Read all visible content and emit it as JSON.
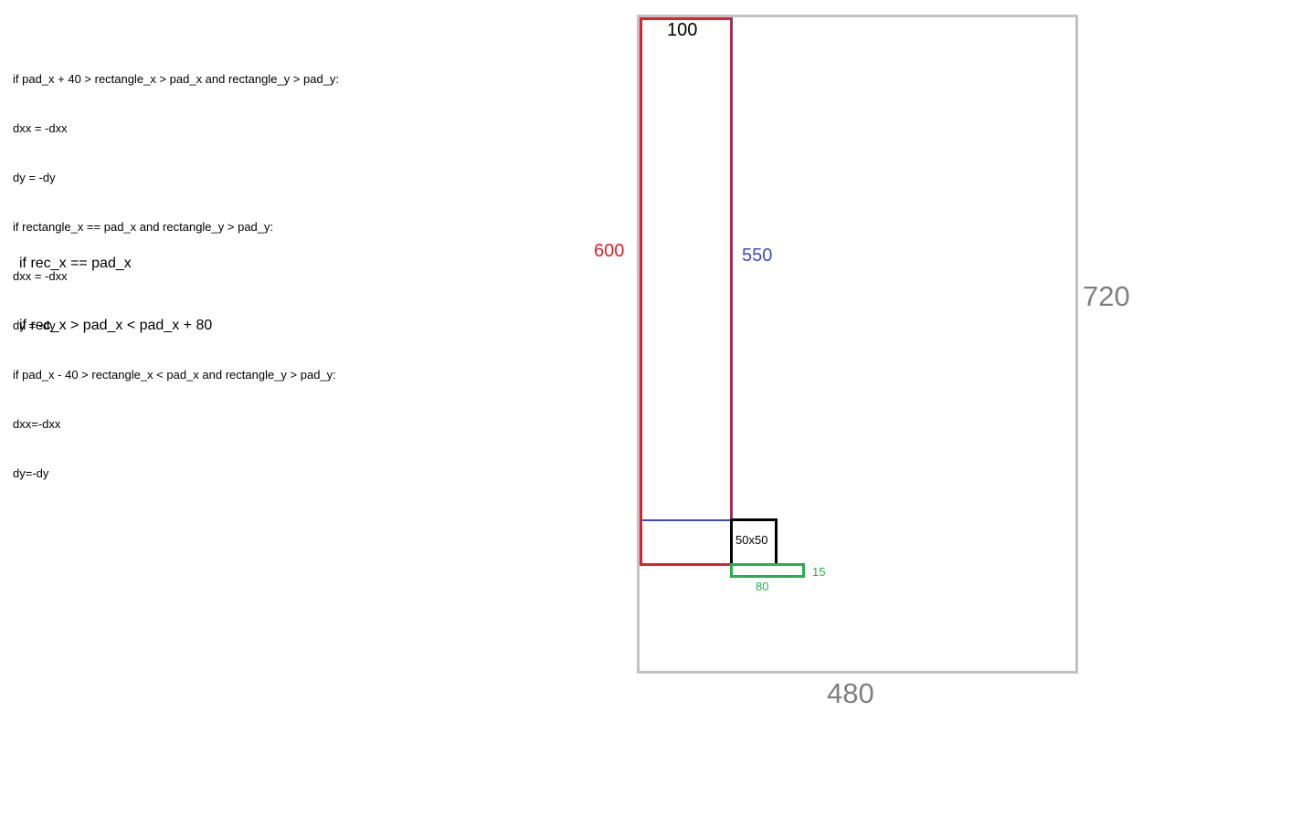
{
  "code_lines": [
    "if pad_x + 40 > rectangle_x > pad_x and rectangle_y > pad_y:",
    "dxx = -dxx",
    "dy = -dy",
    "if rectangle_x == pad_x and rectangle_y > pad_y:",
    "dxx = -dxx",
    "dy = -dy",
    "if pad_x - 40 > rectangle_x < pad_x and rectangle_y > pad_y:",
    "dxx=-dxx",
    "dy=-dy"
  ],
  "notes": [
    "if rec_x == pad_x",
    "if rec_x > pad_x < pad_x + 80"
  ],
  "diagram": {
    "canvas_width_label": "480",
    "canvas_height_label": "720",
    "red_width_label": "100",
    "red_height_label": "600",
    "blue_height_label": "550",
    "square_label": "50x50",
    "paddle_width_label": "80",
    "paddle_height_label": "15",
    "colors": {
      "canvas": "#c3c3c3",
      "red": "#e0202a",
      "blue": "#3f48cc",
      "black": "#000000",
      "green": "#22b14c",
      "dimension_text": "#7f7f7f"
    }
  }
}
